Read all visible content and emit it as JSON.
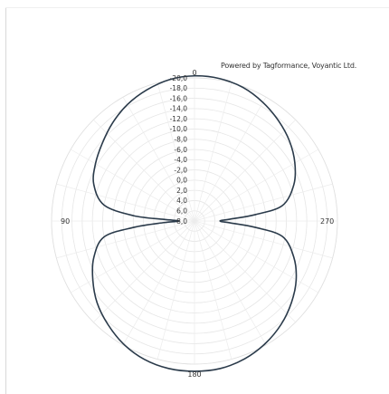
{
  "credit": "Powered by Tagformance, Voyantic Ltd.",
  "chart_data": {
    "type": "polar-line",
    "angle_labels": [
      {
        "angle": 0,
        "label": "0"
      },
      {
        "angle": 90,
        "label": "90"
      },
      {
        "angle": 180,
        "label": "180"
      },
      {
        "angle": 270,
        "label": "270"
      }
    ],
    "angle_direction": "counterclockwise",
    "r_axis_range": [
      8.0,
      -20.0
    ],
    "r_ticks": [
      "8,0",
      "6,0",
      "4,0",
      "2,0",
      "0,0",
      "-2,0",
      "-4,0",
      "-6,0",
      "-8,0",
      "-10,0",
      "-12,0",
      "-14,0",
      "-16,0",
      "-18,0",
      "-20,0"
    ],
    "r_tick_values": [
      8,
      6,
      4,
      2,
      0,
      -2,
      -4,
      -6,
      -8,
      -10,
      -12,
      -14,
      -16,
      -18,
      -20
    ],
    "grid": true,
    "series": [
      {
        "color": "#2a3a4a",
        "points": [
          {
            "angle": 0,
            "r": -20.4
          },
          {
            "angle": 10,
            "r": -20.1
          },
          {
            "angle": 20,
            "r": -19.3
          },
          {
            "angle": 30,
            "r": -18.3
          },
          {
            "angle": 40,
            "r": -17.0
          },
          {
            "angle": 50,
            "r": -15.6
          },
          {
            "angle": 60,
            "r": -14.4
          },
          {
            "angle": 70,
            "r": -13.0
          },
          {
            "angle": 80,
            "r": -10.0
          },
          {
            "angle": 85,
            "r": -4.0
          },
          {
            "angle": 87,
            "r": 2.0
          },
          {
            "angle": 90,
            "r": 5.0
          },
          {
            "angle": 93,
            "r": 2.0
          },
          {
            "angle": 96,
            "r": -4.0
          },
          {
            "angle": 100,
            "r": -10.0
          },
          {
            "angle": 110,
            "r": -13.0
          },
          {
            "angle": 120,
            "r": -15.0
          },
          {
            "angle": 130,
            "r": -16.9
          },
          {
            "angle": 140,
            "r": -18.4
          },
          {
            "angle": 150,
            "r": -19.8
          },
          {
            "angle": 160,
            "r": -20.8
          },
          {
            "angle": 170,
            "r": -21.3
          },
          {
            "angle": 180,
            "r": -21.4
          },
          {
            "angle": 190,
            "r": -21.3
          },
          {
            "angle": 200,
            "r": -20.7
          },
          {
            "angle": 210,
            "r": -19.7
          },
          {
            "angle": 220,
            "r": -18.4
          },
          {
            "angle": 230,
            "r": -16.8
          },
          {
            "angle": 240,
            "r": -15.0
          },
          {
            "angle": 250,
            "r": -12.7
          },
          {
            "angle": 260,
            "r": -9.5
          },
          {
            "angle": 264,
            "r": -4.0
          },
          {
            "angle": 267,
            "r": 1.0
          },
          {
            "angle": 270,
            "r": 3.0
          },
          {
            "angle": 273,
            "r": 1.0
          },
          {
            "angle": 276,
            "r": -4.0
          },
          {
            "angle": 280,
            "r": -9.5
          },
          {
            "angle": 290,
            "r": -12.7
          },
          {
            "angle": 300,
            "r": -14.7
          },
          {
            "angle": 310,
            "r": -16.3
          },
          {
            "angle": 320,
            "r": -17.6
          },
          {
            "angle": 330,
            "r": -18.8
          },
          {
            "angle": 340,
            "r": -19.8
          },
          {
            "angle": 350,
            "r": -20.3
          }
        ]
      }
    ]
  }
}
